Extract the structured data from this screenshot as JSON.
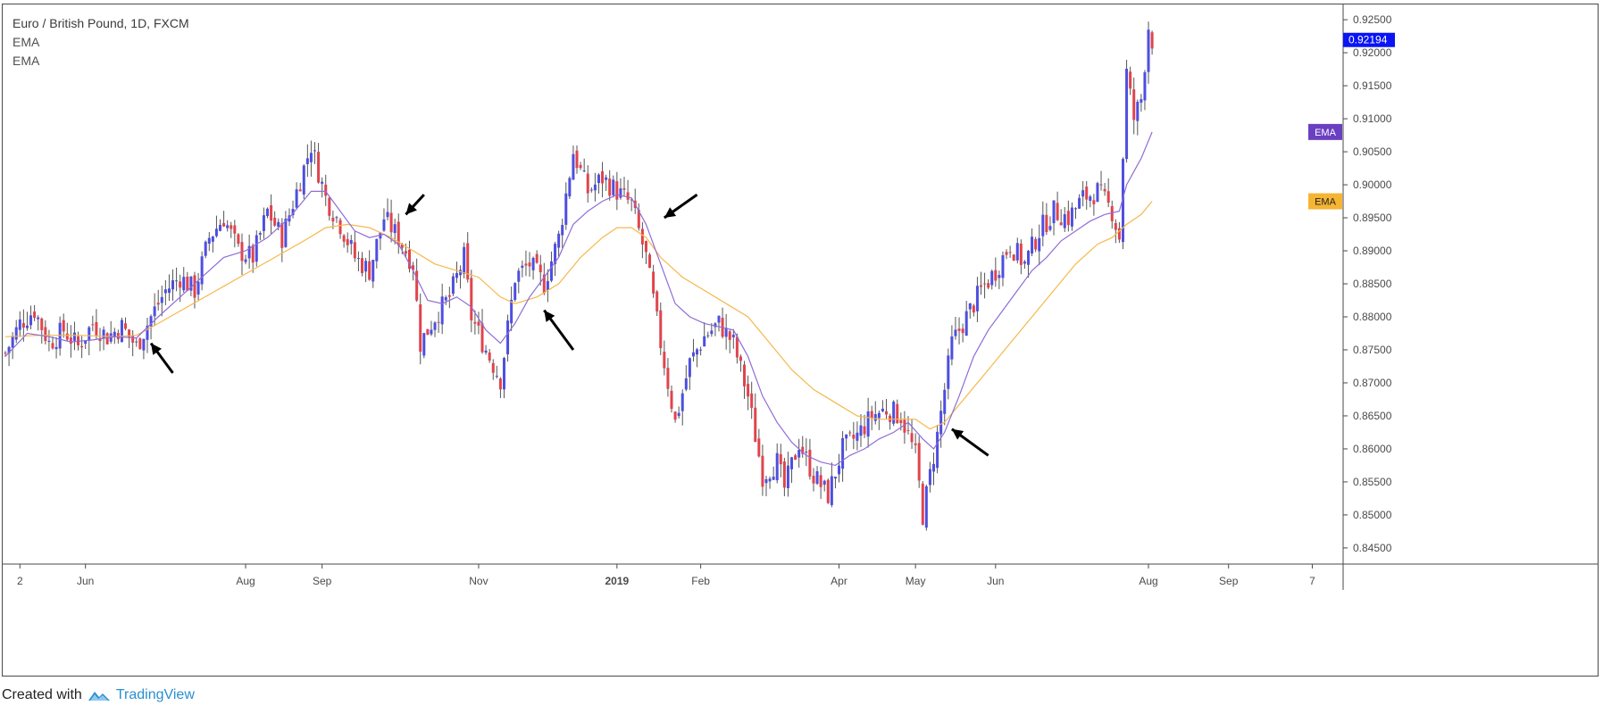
{
  "legend": {
    "title": "Euro / British Pound, 1D, FXCM",
    "ema1": "EMA",
    "ema2": "EMA"
  },
  "footer": {
    "prefix": "Created with",
    "brand": "TradingView"
  },
  "colors": {
    "bull": "#4d4fe0",
    "bear": "#e0444c",
    "ema_fast": "#8f6dd6",
    "ema_slow": "#f5b84a",
    "last_price_bg": "#0a14f5",
    "ema_fast_tag": "#6a3fc2",
    "ema_slow_tag": "#f5b533",
    "axis_border": "#4a4a4a"
  },
  "chart_data": {
    "type": "candlestick",
    "symbol": "Euro / British Pound, 1D, FXCM",
    "y_ticks": [
      "0.92500",
      "0.92000",
      "0.91500",
      "0.91000",
      "0.90500",
      "0.90000",
      "0.89500",
      "0.89000",
      "0.88500",
      "0.88000",
      "0.87500",
      "0.87000",
      "0.86500",
      "0.86000",
      "0.85500",
      "0.85000",
      "0.84500"
    ],
    "ylim": [
      0.8435,
      0.9265
    ],
    "x_ticks": [
      {
        "label": "2",
        "t": 4
      },
      {
        "label": "Jun",
        "t": 22
      },
      {
        "label": "Aug",
        "t": 66
      },
      {
        "label": "Sep",
        "t": 87
      },
      {
        "label": "Nov",
        "t": 130
      },
      {
        "label": "2019",
        "t": 168,
        "bold": true
      },
      {
        "label": "Feb",
        "t": 191
      },
      {
        "label": "Apr",
        "t": 229
      },
      {
        "label": "May",
        "t": 250
      },
      {
        "label": "Jun",
        "t": 272
      },
      {
        "label": "Aug",
        "t": 314
      },
      {
        "label": "Sep",
        "t": 336
      },
      {
        "label": "7",
        "t": 359
      }
    ],
    "x_range": [
      0,
      366
    ],
    "last_price": "0.92194",
    "ema_tags": [
      {
        "label": "EMA",
        "value": 0.908,
        "role": "fast"
      },
      {
        "label": "EMA",
        "value": 0.8975,
        "role": "slow"
      }
    ],
    "close_path": [
      [
        0,
        0.8745
      ],
      [
        4,
        0.879
      ],
      [
        8,
        0.881
      ],
      [
        12,
        0.876
      ],
      [
        16,
        0.878
      ],
      [
        20,
        0.8755
      ],
      [
        24,
        0.879
      ],
      [
        28,
        0.877
      ],
      [
        32,
        0.8785
      ],
      [
        36,
        0.8755
      ],
      [
        40,
        0.88
      ],
      [
        44,
        0.884
      ],
      [
        48,
        0.886
      ],
      [
        52,
        0.884
      ],
      [
        56,
        0.892
      ],
      [
        60,
        0.895
      ],
      [
        64,
        0.89
      ],
      [
        68,
        0.889
      ],
      [
        72,
        0.896
      ],
      [
        76,
        0.892
      ],
      [
        80,
        0.899
      ],
      [
        84,
        0.906
      ],
      [
        88,
        0.898
      ],
      [
        92,
        0.894
      ],
      [
        96,
        0.889
      ],
      [
        100,
        0.887
      ],
      [
        104,
        0.895
      ],
      [
        108,
        0.892
      ],
      [
        112,
        0.888
      ],
      [
        114,
        0.876
      ],
      [
        118,
        0.88
      ],
      [
        122,
        0.883
      ],
      [
        126,
        0.889
      ],
      [
        128,
        0.88
      ],
      [
        132,
        0.875
      ],
      [
        136,
        0.8705
      ],
      [
        140,
        0.886
      ],
      [
        144,
        0.888
      ],
      [
        148,
        0.885
      ],
      [
        152,
        0.892
      ],
      [
        156,
        0.905
      ],
      [
        160,
        0.899
      ],
      [
        164,
        0.901
      ],
      [
        168,
        0.899
      ],
      [
        172,
        0.897
      ],
      [
        176,
        0.889
      ],
      [
        180,
        0.876
      ],
      [
        184,
        0.864
      ],
      [
        188,
        0.873
      ],
      [
        192,
        0.877
      ],
      [
        196,
        0.879
      ],
      [
        200,
        0.876
      ],
      [
        204,
        0.868
      ],
      [
        208,
        0.856
      ],
      [
        212,
        0.858
      ],
      [
        214,
        0.854
      ],
      [
        218,
        0.861
      ],
      [
        222,
        0.856
      ],
      [
        226,
        0.853
      ],
      [
        230,
        0.86
      ],
      [
        234,
        0.862
      ],
      [
        238,
        0.865
      ],
      [
        242,
        0.866
      ],
      [
        246,
        0.865
      ],
      [
        250,
        0.859
      ],
      [
        252,
        0.85
      ],
      [
        256,
        0.862
      ],
      [
        260,
        0.876
      ],
      [
        264,
        0.88
      ],
      [
        268,
        0.884
      ],
      [
        272,
        0.887
      ],
      [
        276,
        0.891
      ],
      [
        280,
        0.888
      ],
      [
        284,
        0.893
      ],
      [
        288,
        0.896
      ],
      [
        292,
        0.895
      ],
      [
        296,
        0.898
      ],
      [
        300,
        0.899
      ],
      [
        304,
        0.896
      ],
      [
        306,
        0.892
      ],
      [
        308,
        0.917
      ],
      [
        310,
        0.91
      ],
      [
        312,
        0.913
      ],
      [
        314,
        0.924
      ],
      [
        315,
        0.9219
      ]
    ],
    "ema_fast_path": [
      [
        0,
        0.874
      ],
      [
        6,
        0.8775
      ],
      [
        12,
        0.877
      ],
      [
        18,
        0.8762
      ],
      [
        24,
        0.8765
      ],
      [
        30,
        0.877
      ],
      [
        36,
        0.8768
      ],
      [
        42,
        0.88
      ],
      [
        48,
        0.883
      ],
      [
        54,
        0.886
      ],
      [
        60,
        0.889
      ],
      [
        66,
        0.89
      ],
      [
        72,
        0.892
      ],
      [
        78,
        0.895
      ],
      [
        84,
        0.899
      ],
      [
        88,
        0.899
      ],
      [
        92,
        0.896
      ],
      [
        96,
        0.893
      ],
      [
        100,
        0.892
      ],
      [
        104,
        0.8925
      ],
      [
        108,
        0.891
      ],
      [
        112,
        0.887
      ],
      [
        116,
        0.8825
      ],
      [
        120,
        0.882
      ],
      [
        124,
        0.883
      ],
      [
        128,
        0.8815
      ],
      [
        132,
        0.878
      ],
      [
        136,
        0.876
      ],
      [
        140,
        0.879
      ],
      [
        144,
        0.883
      ],
      [
        148,
        0.886
      ],
      [
        152,
        0.889
      ],
      [
        156,
        0.894
      ],
      [
        160,
        0.896
      ],
      [
        164,
        0.8975
      ],
      [
        168,
        0.8985
      ],
      [
        172,
        0.898
      ],
      [
        176,
        0.894
      ],
      [
        180,
        0.888
      ],
      [
        184,
        0.882
      ],
      [
        188,
        0.88
      ],
      [
        192,
        0.879
      ],
      [
        196,
        0.8785
      ],
      [
        200,
        0.878
      ],
      [
        204,
        0.874
      ],
      [
        208,
        0.868
      ],
      [
        212,
        0.864
      ],
      [
        216,
        0.861
      ],
      [
        220,
        0.859
      ],
      [
        224,
        0.858
      ],
      [
        228,
        0.8575
      ],
      [
        232,
        0.859
      ],
      [
        236,
        0.86
      ],
      [
        240,
        0.8615
      ],
      [
        244,
        0.8625
      ],
      [
        248,
        0.864
      ],
      [
        252,
        0.8615
      ],
      [
        255,
        0.86
      ],
      [
        258,
        0.8625
      ],
      [
        262,
        0.868
      ],
      [
        266,
        0.874
      ],
      [
        270,
        0.878
      ],
      [
        274,
        0.881
      ],
      [
        278,
        0.884
      ],
      [
        282,
        0.887
      ],
      [
        286,
        0.889
      ],
      [
        290,
        0.8915
      ],
      [
        294,
        0.893
      ],
      [
        298,
        0.8945
      ],
      [
        302,
        0.8955
      ],
      [
        306,
        0.896
      ],
      [
        308,
        0.9
      ],
      [
        310,
        0.902
      ],
      [
        312,
        0.904
      ],
      [
        315,
        0.908
      ]
    ],
    "ema_slow_path": [
      [
        0,
        0.877
      ],
      [
        10,
        0.8772
      ],
      [
        20,
        0.8772
      ],
      [
        30,
        0.877
      ],
      [
        36,
        0.8772
      ],
      [
        42,
        0.879
      ],
      [
        50,
        0.8815
      ],
      [
        58,
        0.884
      ],
      [
        66,
        0.8865
      ],
      [
        74,
        0.889
      ],
      [
        82,
        0.8915
      ],
      [
        88,
        0.8935
      ],
      [
        94,
        0.894
      ],
      [
        100,
        0.8935
      ],
      [
        106,
        0.892
      ],
      [
        112,
        0.89
      ],
      [
        118,
        0.888
      ],
      [
        124,
        0.887
      ],
      [
        130,
        0.886
      ],
      [
        136,
        0.883
      ],
      [
        140,
        0.882
      ],
      [
        146,
        0.883
      ],
      [
        152,
        0.885
      ],
      [
        158,
        0.889
      ],
      [
        164,
        0.892
      ],
      [
        168,
        0.8935
      ],
      [
        172,
        0.8935
      ],
      [
        176,
        0.892
      ],
      [
        180,
        0.889
      ],
      [
        186,
        0.886
      ],
      [
        192,
        0.884
      ],
      [
        198,
        0.882
      ],
      [
        204,
        0.88
      ],
      [
        210,
        0.876
      ],
      [
        216,
        0.872
      ],
      [
        222,
        0.869
      ],
      [
        228,
        0.867
      ],
      [
        234,
        0.865
      ],
      [
        240,
        0.8645
      ],
      [
        246,
        0.8645
      ],
      [
        250,
        0.8645
      ],
      [
        254,
        0.863
      ],
      [
        258,
        0.864
      ],
      [
        264,
        0.868
      ],
      [
        270,
        0.872
      ],
      [
        276,
        0.876
      ],
      [
        282,
        0.88
      ],
      [
        288,
        0.884
      ],
      [
        294,
        0.888
      ],
      [
        300,
        0.891
      ],
      [
        304,
        0.892
      ],
      [
        308,
        0.894
      ],
      [
        312,
        0.8955
      ],
      [
        315,
        0.8975
      ]
    ],
    "arrows": [
      {
        "x1": 46,
        "y1": 0.8715,
        "x2": 40,
        "y2": 0.876
      },
      {
        "x1": 115,
        "y1": 0.8985,
        "x2": 110,
        "y2": 0.8955
      },
      {
        "x1": 156,
        "y1": 0.875,
        "x2": 148,
        "y2": 0.881
      },
      {
        "x1": 190,
        "y1": 0.8985,
        "x2": 181,
        "y2": 0.895
      },
      {
        "x1": 270,
        "y1": 0.859,
        "x2": 260,
        "y2": 0.863
      }
    ]
  }
}
